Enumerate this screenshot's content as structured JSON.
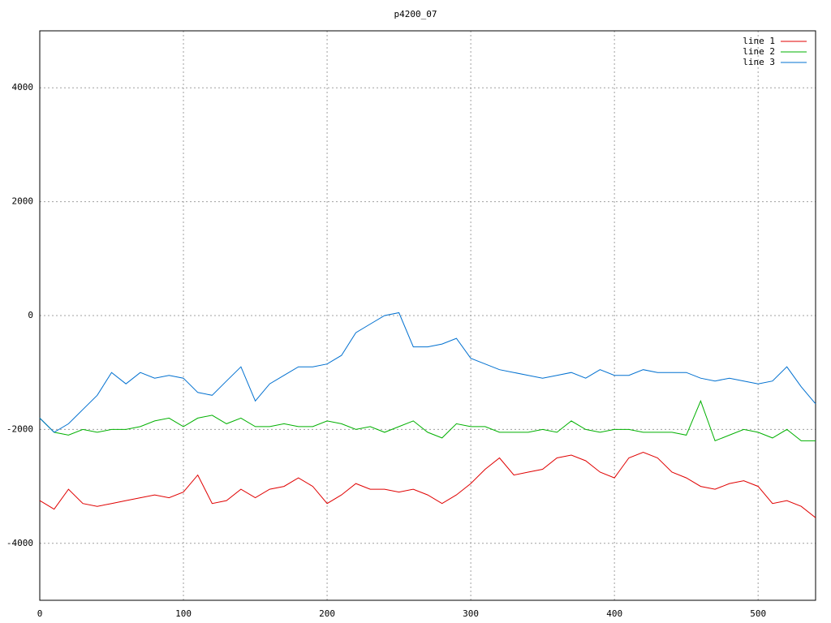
{
  "chart_data": {
    "type": "line",
    "title": "p4200_07",
    "x": [
      0,
      10,
      20,
      30,
      40,
      50,
      60,
      70,
      80,
      90,
      100,
      110,
      120,
      130,
      140,
      150,
      160,
      170,
      180,
      190,
      200,
      210,
      220,
      230,
      240,
      250,
      260,
      270,
      280,
      290,
      300,
      310,
      320,
      330,
      340,
      350,
      360,
      370,
      380,
      390,
      400,
      410,
      420,
      430,
      440,
      450,
      460,
      470,
      480,
      490,
      500,
      510,
      520,
      530,
      540
    ],
    "series": [
      {
        "name": "line 1",
        "color": "#e00000",
        "values": [
          -3250,
          -3400,
          -3050,
          -3300,
          -3350,
          -3300,
          -3250,
          -3200,
          -3150,
          -3200,
          -3100,
          -2800,
          -3300,
          -3250,
          -3050,
          -3200,
          -3050,
          -3000,
          -2850,
          -3000,
          -3300,
          -3150,
          -2950,
          -3050,
          -3050,
          -3100,
          -3050,
          -3150,
          -3300,
          -3150,
          -2950,
          -2700,
          -2500,
          -2800,
          -2750,
          -2700,
          -2500,
          -2450,
          -2550,
          -2750,
          -2850,
          -2500,
          -2400,
          -2500,
          -2750,
          -2850,
          -3000,
          -3050,
          -2950,
          -2900,
          -3000,
          -3300,
          -3250,
          -3350,
          -3550
        ]
      },
      {
        "name": "line 2",
        "color": "#00b000",
        "values": [
          -1800,
          -2050,
          -2100,
          -2000,
          -2050,
          -2000,
          -2000,
          -1950,
          -1850,
          -1800,
          -1950,
          -1800,
          -1750,
          -1900,
          -1800,
          -1950,
          -1950,
          -1900,
          -1950,
          -1950,
          -1850,
          -1900,
          -2000,
          -1950,
          -2050,
          -1950,
          -1850,
          -2050,
          -2150,
          -1900,
          -1950,
          -1950,
          -2050,
          -2050,
          -2050,
          -2000,
          -2050,
          -1850,
          -2000,
          -2050,
          -2000,
          -2000,
          -2050,
          -2050,
          -2050,
          -2100,
          -1500,
          -2200,
          -2100,
          -2000,
          -2050,
          -2150,
          -2000,
          -2200,
          -2200
        ]
      },
      {
        "name": "line 3",
        "color": "#0070d0",
        "values": [
          -1800,
          -2050,
          -1900,
          -1650,
          -1400,
          -1000,
          -1200,
          -1000,
          -1100,
          -1050,
          -1100,
          -1350,
          -1400,
          -1150,
          -900,
          -1500,
          -1200,
          -1050,
          -900,
          -900,
          -850,
          -700,
          -300,
          -150,
          0,
          50,
          -550,
          -550,
          -500,
          -400,
          -750,
          -850,
          -950,
          -1000,
          -1050,
          -1100,
          -1050,
          -1000,
          -1100,
          -950,
          -1050,
          -1050,
          -950,
          -1000,
          -1000,
          -1000,
          -1100,
          -1150,
          -1100,
          -1150,
          -1200,
          -1150,
          -900,
          -1250,
          -1550
        ]
      }
    ],
    "xlim": [
      0,
      540
    ],
    "ylim": [
      -5000,
      5000
    ],
    "xticks": [
      0,
      100,
      200,
      300,
      400,
      500
    ],
    "yticks": [
      -4000,
      -2000,
      0,
      2000,
      4000
    ],
    "grid": true,
    "legend": "top-right"
  }
}
